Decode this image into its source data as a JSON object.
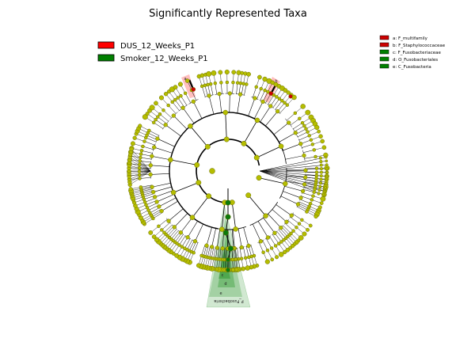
{
  "title": "Significantly Represented Taxa",
  "legend": [
    {
      "label": "DUS_12_Weeks_P1",
      "color": "#ff0000"
    },
    {
      "label": "Smoker_12_Weeks_P1",
      "color": "#008000"
    }
  ],
  "clade_legend": [
    {
      "label": "a: F_multifamily",
      "color": "#cc0000"
    },
    {
      "label": "b: F_Staphylococcaceae",
      "color": "#cc0000"
    },
    {
      "label": "c: F_Fusobacteriaceae",
      "color": "#008000"
    },
    {
      "label": "d: O_Fusobacteriales",
      "color": "#008000"
    },
    {
      "label": "e: C_Fusobacteria",
      "color": "#008000"
    }
  ],
  "clade_labels": {
    "phylum": "P_Fusobacteria",
    "a": "a",
    "b": "b",
    "c": "c",
    "d": "d",
    "e": "e"
  },
  "colors": {
    "node": "#b5bd00",
    "node_stroke": "#6b7000",
    "red_highlight": "#ff0000",
    "green_highlight": "#008000",
    "green_node": "#0b7a0b",
    "red_node": "#cc0000"
  }
}
